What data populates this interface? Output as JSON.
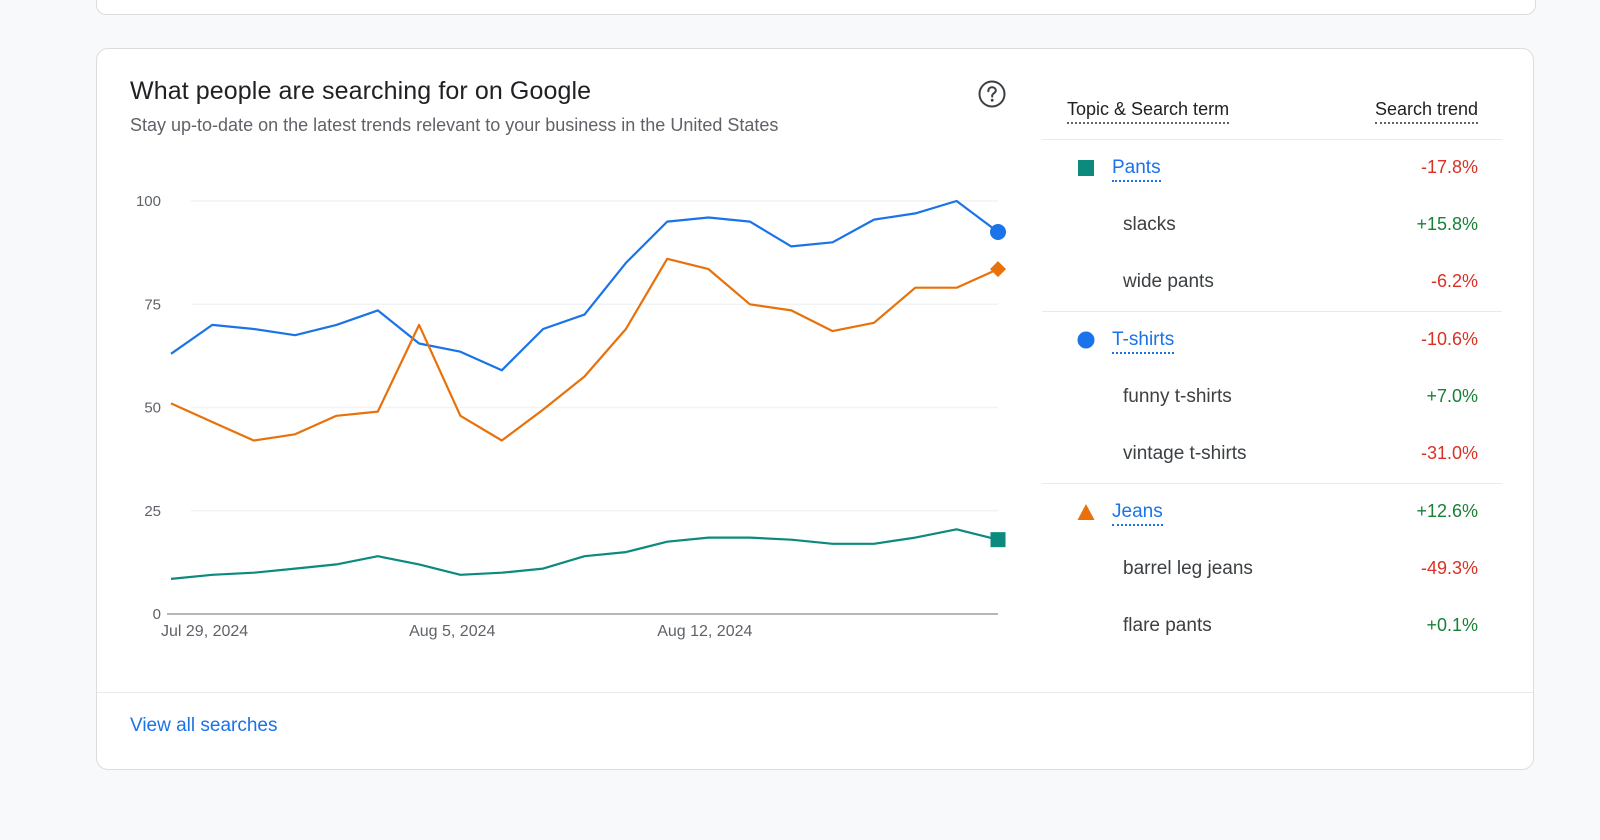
{
  "card": {
    "title": "What people are searching for on Google",
    "subtitle": "Stay up-to-date on the latest trends relevant to your business in the United States",
    "help_icon": "help-circle-icon",
    "view_all": "View all searches"
  },
  "trends_table": {
    "header_topic": "Topic & Search term",
    "header_trend": "Search trend",
    "groups": [
      {
        "topic": "Pants",
        "trend": "-17.8%",
        "trend_dir": "neg",
        "marker": "square",
        "color": "#0b8a7d",
        "terms": [
          {
            "term": "slacks",
            "trend": "+15.8%",
            "trend_dir": "pos"
          },
          {
            "term": "wide pants",
            "trend": "-6.2%",
            "trend_dir": "neg"
          }
        ]
      },
      {
        "topic": "T-shirts",
        "trend": "-10.6%",
        "trend_dir": "neg",
        "marker": "circle",
        "color": "#1a73e8",
        "terms": [
          {
            "term": "funny t-shirts",
            "trend": "+7.0%",
            "trend_dir": "pos"
          },
          {
            "term": "vintage t-shirts",
            "trend": "-31.0%",
            "trend_dir": "neg"
          }
        ]
      },
      {
        "topic": "Jeans",
        "trend": "+12.6%",
        "trend_dir": "pos",
        "marker": "triangle",
        "color": "#e8710a",
        "terms": [
          {
            "term": "barrel leg jeans",
            "trend": "-49.3%",
            "trend_dir": "neg"
          },
          {
            "term": "flare pants",
            "trend": "+0.1%",
            "trend_dir": "pos"
          }
        ]
      }
    ]
  },
  "chart_data": {
    "type": "line",
    "ylim": [
      0,
      100
    ],
    "yticks": [
      0,
      25,
      50,
      75,
      100
    ],
    "grid": true,
    "x_tick_labels": [
      "Jul 29, 2024",
      "Aug 5, 2024",
      "Aug 12, 2024"
    ],
    "x_tick_index": [
      0,
      6,
      12
    ],
    "series": [
      {
        "key": "tshirts",
        "color": "#1a73e8",
        "end_marker": "circle",
        "values": [
          63,
          70,
          69,
          67.5,
          70,
          73.5,
          65.5,
          63.5,
          59,
          69,
          72.5,
          85,
          95,
          96,
          95,
          89,
          90,
          95.5,
          97,
          100,
          92.5
        ]
      },
      {
        "key": "jeans",
        "color": "#e8710a",
        "end_marker": "diamond",
        "values": [
          51,
          46.5,
          42,
          43.5,
          48,
          49,
          70,
          48,
          42,
          49.5,
          57.5,
          69,
          86,
          83.5,
          75,
          73.5,
          68.5,
          70.5,
          79,
          79,
          83.5
        ]
      },
      {
        "key": "pants",
        "color": "#0b8a7d",
        "end_marker": "square",
        "values": [
          8.5,
          9.5,
          10,
          11,
          12,
          14,
          12,
          9.5,
          10,
          11,
          14,
          15,
          17.5,
          18.5,
          18.5,
          18,
          17,
          17,
          18.5,
          20.5,
          18
        ]
      }
    ]
  }
}
